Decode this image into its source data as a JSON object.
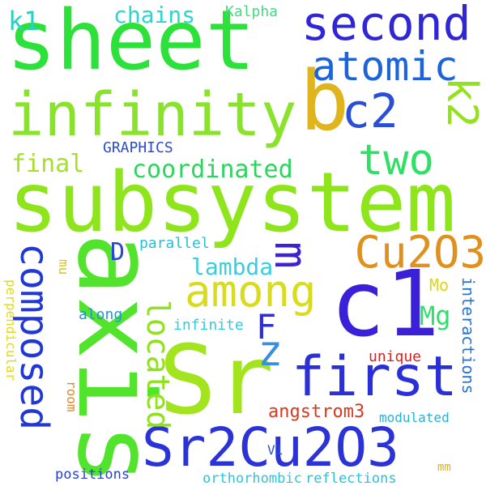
{
  "words": [
    {
      "text": "sheet",
      "color": "#2ce23a"
    },
    {
      "text": "subsystem",
      "color": "#8fe51c"
    },
    {
      "text": "axis",
      "color": "#52e32c"
    },
    {
      "text": "Sr",
      "color": "#a2e41d"
    },
    {
      "text": "c1",
      "color": "#3b20d9"
    },
    {
      "text": "b",
      "color": "#e0b41d"
    },
    {
      "text": "Sr2Cu2O3",
      "color": "#2b33d6"
    },
    {
      "text": "first",
      "color": "#2b2fd8"
    },
    {
      "text": "infinity",
      "color": "#88e32a"
    },
    {
      "text": "second",
      "color": "#3126d6"
    },
    {
      "text": "atomic",
      "color": "#1d63da"
    },
    {
      "text": "c2",
      "color": "#2a4fd6"
    },
    {
      "text": "k2",
      "color": "#92e21c"
    },
    {
      "text": "two",
      "color": "#2fe067"
    },
    {
      "text": "Cu2O3",
      "color": "#e0901d"
    },
    {
      "text": "composed",
      "color": "#2138d4"
    },
    {
      "text": "among",
      "color": "#d8dc1d"
    },
    {
      "text": "m",
      "color": "#3b23d4"
    },
    {
      "text": "z",
      "color": "#3a8fdc"
    },
    {
      "text": "F",
      "color": "#2e2cd6"
    },
    {
      "text": "located",
      "color": "#8fe01e"
    },
    {
      "text": "coordinated",
      "color": "#2bd55e"
    },
    {
      "text": "final",
      "color": "#a6e02b"
    },
    {
      "text": "lambda",
      "color": "#36cfe0"
    },
    {
      "text": "chains",
      "color": "#2ad7cc"
    },
    {
      "text": "k1",
      "color": "#27d2c2"
    },
    {
      "text": "Kalpha",
      "color": "#43dc80"
    },
    {
      "text": "GRAPHICS",
      "color": "#2b4bd3"
    },
    {
      "text": "D",
      "color": "#2b46d6"
    },
    {
      "text": "parallel",
      "color": "#24c0d8"
    },
    {
      "text": "Mo",
      "color": "#dcd41d"
    },
    {
      "text": "Mg",
      "color": "#2fe06c"
    },
    {
      "text": "interactions",
      "color": "#2575d4"
    },
    {
      "text": "mu",
      "color": "#d7c81e"
    },
    {
      "text": "perpendicular",
      "color": "#e0d91e"
    },
    {
      "text": "along",
      "color": "#1f97d2"
    },
    {
      "text": "infinite",
      "color": "#2ad0e2"
    },
    {
      "text": "unique",
      "color": "#d9211d"
    },
    {
      "text": "room",
      "color": "#e08a1d"
    },
    {
      "text": "angstrom3",
      "color": "#d63a1e"
    },
    {
      "text": "modulated",
      "color": "#1eb6d6"
    },
    {
      "text": "V1",
      "color": "#2450d6"
    },
    {
      "text": "positions",
      "color": "#2840d4"
    },
    {
      "text": "orthorhombic",
      "color": "#27c8dc"
    },
    {
      "text": "reflections",
      "color": "#26c2dd"
    },
    {
      "text": "mm",
      "color": "#e0b01d"
    }
  ]
}
